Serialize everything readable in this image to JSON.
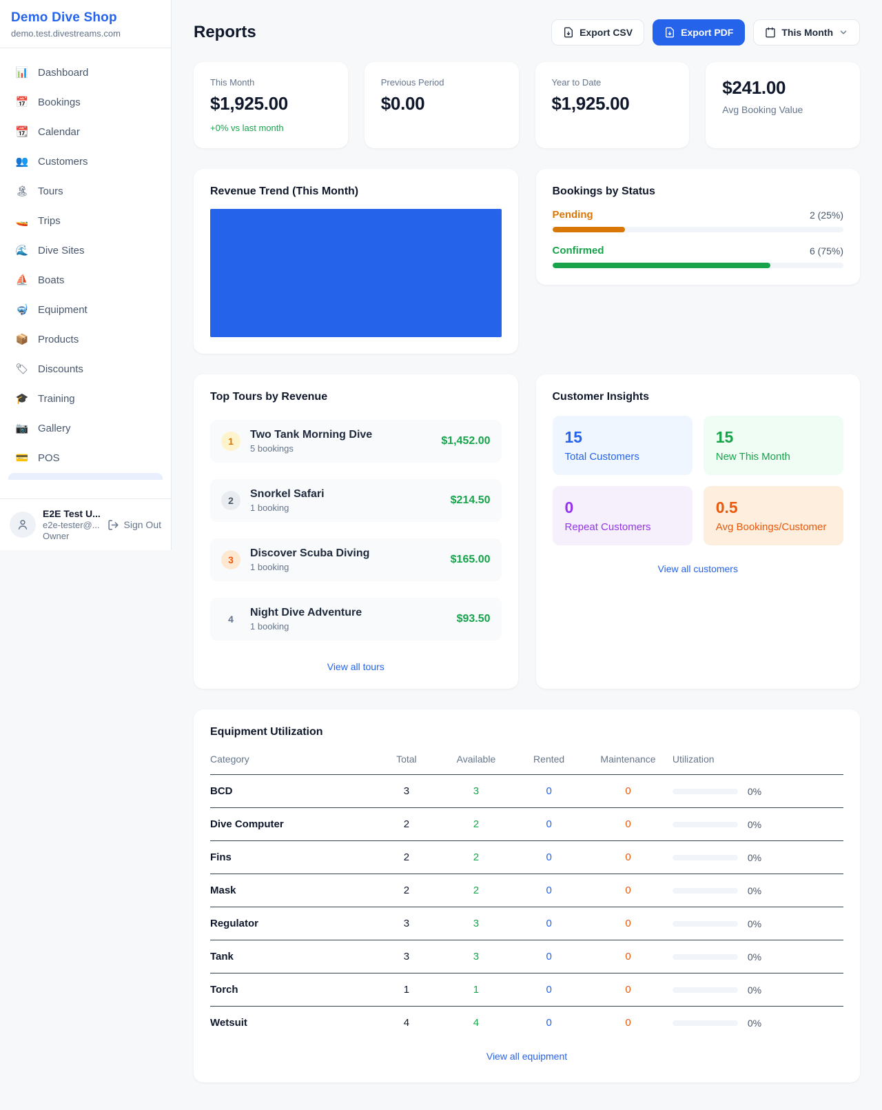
{
  "sidebar": {
    "shop_name": "Demo Dive Shop",
    "shop_domain": "demo.test.divestreams.com",
    "items": [
      {
        "label": "Dashboard",
        "emoji": "📊"
      },
      {
        "label": "Bookings",
        "emoji": "📅"
      },
      {
        "label": "Calendar",
        "emoji": "📆"
      },
      {
        "label": "Customers",
        "emoji": "👥"
      },
      {
        "label": "Tours",
        "emoji": "🏝"
      },
      {
        "label": "Trips",
        "emoji": "🚤"
      },
      {
        "label": "Dive Sites",
        "emoji": "🌊"
      },
      {
        "label": "Boats",
        "emoji": "⛵"
      },
      {
        "label": "Equipment",
        "emoji": "🤿"
      },
      {
        "label": "Products",
        "emoji": "📦"
      },
      {
        "label": "Discounts",
        "emoji": "🏷"
      },
      {
        "label": "Training",
        "emoji": "🎓"
      },
      {
        "label": "Gallery",
        "emoji": "📷"
      },
      {
        "label": "POS",
        "emoji": "💳"
      }
    ],
    "user": {
      "name": "E2E Test U...",
      "email": "e2e-tester@...",
      "role": "Owner",
      "sign_out_label": "Sign Out"
    }
  },
  "header": {
    "title": "Reports",
    "export_csv_label": "Export CSV",
    "export_pdf_label": "Export PDF",
    "period_label": "This Month"
  },
  "stats": [
    {
      "label": "This Month",
      "value": "$1,925.00",
      "delta": "+0% vs last month"
    },
    {
      "label": "Previous Period",
      "value": "$0.00"
    },
    {
      "label": "Year to Date",
      "value": "$1,925.00"
    },
    {
      "label": "Avg Booking Value",
      "value": "$241.00"
    }
  ],
  "revenue_trend": {
    "title": "Revenue Trend (This Month)",
    "bar_color": "#2563eb"
  },
  "bookings_by_status": {
    "title": "Bookings by Status",
    "rows": [
      {
        "label": "Pending",
        "value": "2 (25%)",
        "count": 2,
        "percent": 25,
        "color": "#d97706"
      },
      {
        "label": "Confirmed",
        "value": "6 (75%)",
        "count": 6,
        "percent": 75,
        "color": "#16a34a"
      }
    ]
  },
  "chart_data": [
    {
      "type": "bar",
      "title": "Revenue Trend (This Month)",
      "categories": [
        "This Month"
      ],
      "values": [
        1925.0
      ],
      "ylabel": "Revenue",
      "note": "single full-width solid bar, no axes or labels visible"
    },
    {
      "type": "bar",
      "title": "Bookings by Status",
      "categories": [
        "Pending",
        "Confirmed"
      ],
      "values": [
        2,
        6
      ],
      "percent": [
        25,
        75
      ],
      "colors": [
        "#d97706",
        "#16a34a"
      ]
    }
  ],
  "top_tours": {
    "title": "Top Tours by Revenue",
    "rows": [
      {
        "rank": "1",
        "name": "Two Tank Morning Dive",
        "bookings": "5 bookings",
        "revenue": "$1,452.00"
      },
      {
        "rank": "2",
        "name": "Snorkel Safari",
        "bookings": "1 booking",
        "revenue": "$214.50"
      },
      {
        "rank": "3",
        "name": "Discover Scuba Diving",
        "bookings": "1 booking",
        "revenue": "$165.00"
      },
      {
        "rank": "4",
        "name": "Night Dive Adventure",
        "bookings": "1 booking",
        "revenue": "$93.50"
      }
    ],
    "view_all_label": "View all tours"
  },
  "customer_insights": {
    "title": "Customer Insights",
    "tiles": [
      {
        "value": "15",
        "label": "Total Customers",
        "color": "#2563eb"
      },
      {
        "value": "15",
        "label": "New This Month",
        "color": "#16a34a"
      },
      {
        "value": "0",
        "label": "Repeat Customers",
        "color": "#9333ea"
      },
      {
        "value": "0.5",
        "label": "Avg Bookings/Customer",
        "color": "#ea580c"
      }
    ],
    "view_all_label": "View all customers"
  },
  "equipment": {
    "title": "Equipment Utilization",
    "columns": [
      "Category",
      "Total",
      "Available",
      "Rented",
      "Maintenance",
      "Utilization"
    ],
    "rows": [
      {
        "category": "BCD",
        "total": "3",
        "available": "3",
        "rented": "0",
        "maintenance": "0",
        "utilization": "0%",
        "utilization_pct": 0
      },
      {
        "category": "Dive Computer",
        "total": "2",
        "available": "2",
        "rented": "0",
        "maintenance": "0",
        "utilization": "0%",
        "utilization_pct": 0
      },
      {
        "category": "Fins",
        "total": "2",
        "available": "2",
        "rented": "0",
        "maintenance": "0",
        "utilization": "0%",
        "utilization_pct": 0
      },
      {
        "category": "Mask",
        "total": "2",
        "available": "2",
        "rented": "0",
        "maintenance": "0",
        "utilization": "0%",
        "utilization_pct": 0
      },
      {
        "category": "Regulator",
        "total": "3",
        "available": "3",
        "rented": "0",
        "maintenance": "0",
        "utilization": "0%",
        "utilization_pct": 0
      },
      {
        "category": "Tank",
        "total": "3",
        "available": "3",
        "rented": "0",
        "maintenance": "0",
        "utilization": "0%",
        "utilization_pct": 0
      },
      {
        "category": "Torch",
        "total": "1",
        "available": "1",
        "rented": "0",
        "maintenance": "0",
        "utilization": "0%",
        "utilization_pct": 0
      },
      {
        "category": "Wetsuit",
        "total": "4",
        "available": "4",
        "rented": "0",
        "maintenance": "0",
        "utilization": "0%",
        "utilization_pct": 0
      }
    ],
    "view_all_label": "View all equipment"
  }
}
